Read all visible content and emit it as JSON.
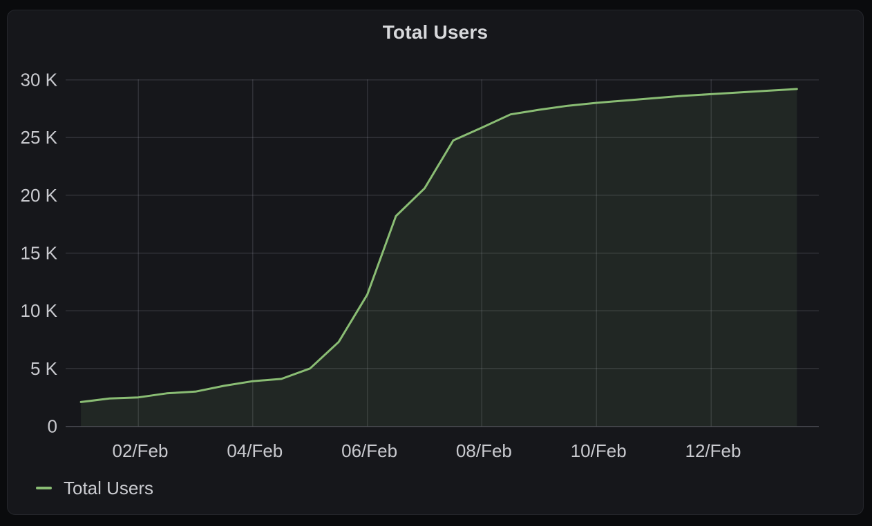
{
  "panel": {
    "title": "Total Users"
  },
  "legend": {
    "label": "Total Users"
  },
  "colors": {
    "page_bg": "#0A0B0D",
    "panel_bg": "#16171B",
    "panel_border": "#25272C",
    "series_green": "#8ABD74",
    "fill_green": "rgba(138,189,116,0.10)",
    "grid": "rgba(204,204,220,0.15)",
    "axis_baseline": "rgba(204,204,220,0.28)",
    "axis_text": "#C9CACF",
    "title_text": "#D8D9DC"
  },
  "chart_data": {
    "type": "area",
    "title": "Total Users",
    "xlabel": "",
    "ylabel": "",
    "ylim": [
      0,
      30000
    ],
    "x_unit": "day of February",
    "grid": true,
    "legend_position": "bottom-left",
    "y_ticks": [
      {
        "value": 0,
        "label": "0"
      },
      {
        "value": 5000,
        "label": "5 K"
      },
      {
        "value": 10000,
        "label": "10 K"
      },
      {
        "value": 15000,
        "label": "15 K"
      },
      {
        "value": 20000,
        "label": "20 K"
      },
      {
        "value": 25000,
        "label": "25 K"
      },
      {
        "value": 30000,
        "label": "30 K"
      }
    ],
    "x_ticks": [
      {
        "day": 2,
        "label": "02/Feb"
      },
      {
        "day": 4,
        "label": "04/Feb"
      },
      {
        "day": 6,
        "label": "06/Feb"
      },
      {
        "day": 8,
        "label": "08/Feb"
      },
      {
        "day": 10,
        "label": "10/Feb"
      },
      {
        "day": 12,
        "label": "12/Feb"
      }
    ],
    "series": [
      {
        "name": "Total Users",
        "color": "#8ABD74",
        "points": [
          {
            "day": 1.0,
            "value": 2100
          },
          {
            "day": 1.5,
            "value": 2400
          },
          {
            "day": 2.0,
            "value": 2500
          },
          {
            "day": 2.5,
            "value": 2850
          },
          {
            "day": 3.0,
            "value": 3000
          },
          {
            "day": 3.5,
            "value": 3500
          },
          {
            "day": 4.0,
            "value": 3900
          },
          {
            "day": 4.5,
            "value": 4100
          },
          {
            "day": 5.0,
            "value": 5000
          },
          {
            "day": 5.5,
            "value": 7300
          },
          {
            "day": 6.0,
            "value": 11400
          },
          {
            "day": 6.5,
            "value": 18200
          },
          {
            "day": 7.0,
            "value": 20600
          },
          {
            "day": 7.5,
            "value": 24750
          },
          {
            "day": 8.0,
            "value": 25850
          },
          {
            "day": 8.5,
            "value": 27000
          },
          {
            "day": 9.0,
            "value": 27400
          },
          {
            "day": 9.5,
            "value": 27750
          },
          {
            "day": 10.0,
            "value": 28000
          },
          {
            "day": 10.5,
            "value": 28200
          },
          {
            "day": 11.0,
            "value": 28400
          },
          {
            "day": 11.5,
            "value": 28600
          },
          {
            "day": 12.0,
            "value": 28750
          },
          {
            "day": 12.5,
            "value": 28900
          },
          {
            "day": 13.0,
            "value": 29050
          },
          {
            "day": 13.5,
            "value": 29200
          }
        ]
      }
    ]
  }
}
